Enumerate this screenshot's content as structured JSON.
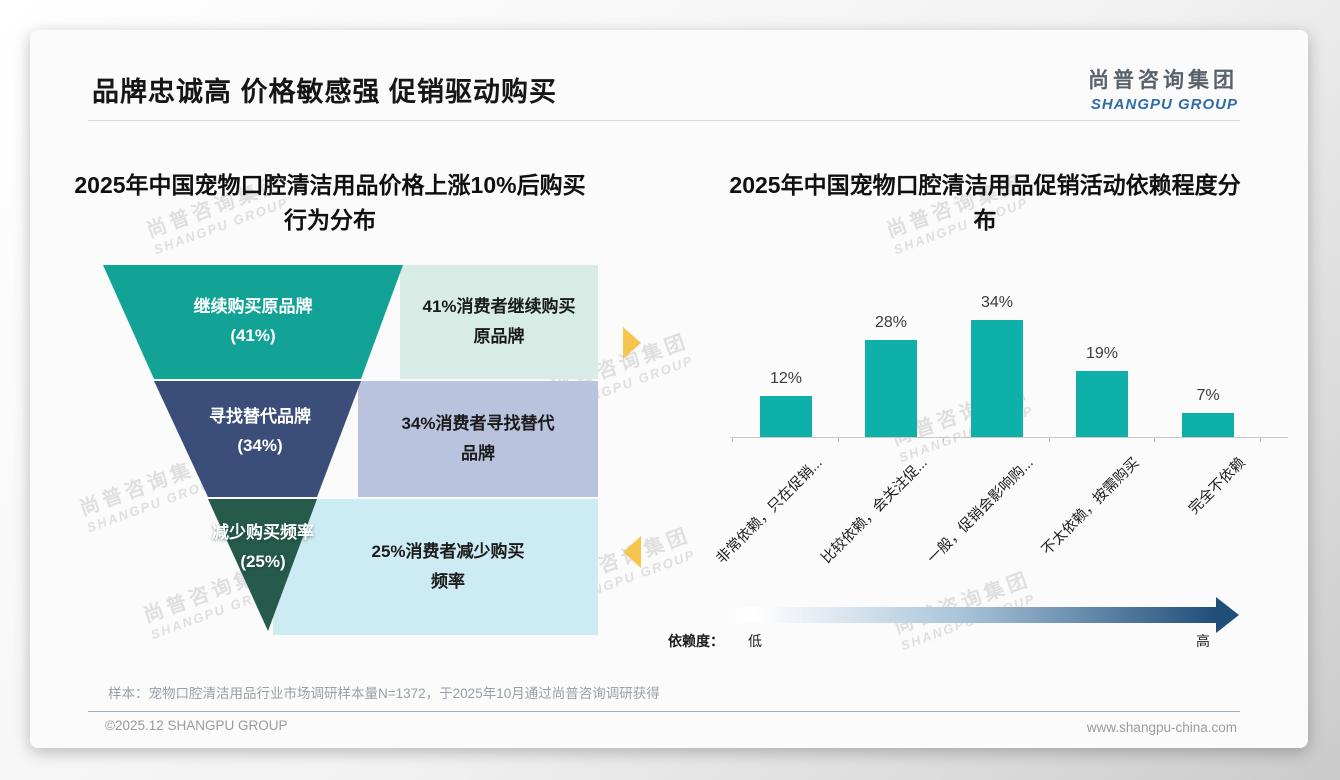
{
  "slide": {
    "title": "品牌忠诚高 价格敏感强 促销驱动购买",
    "logo": {
      "cn": "尚普咨询集团",
      "en": "SHANGPU GROUP"
    },
    "watermark": {
      "cn": "尚普咨询集团",
      "en": "SHANGPU GROUP"
    },
    "accent_arrow_color": "#f6c54f",
    "sample_note": "样本：宠物口腔清洁用品行业市场调研样本量N=1372，于2025年10月通过尚普咨询调研获得",
    "footer_left": "©2025.12 SHANGPU GROUP",
    "footer_right": "www.shangpu-china.com"
  },
  "chart_data": [
    {
      "type": "funnel",
      "title": "2025年中国宠物口腔清洁用品价格上涨10%后购买行为分布",
      "title_lines": [
        "2025年中国宠物口腔清洁用品价格上涨10%后购买",
        "行为分布"
      ],
      "levels": [
        {
          "label": "继续购买原品牌",
          "value": 41,
          "pct_label": "(41%)",
          "note": "41%消费者继续购买原品牌",
          "note_lines": [
            "41%消费者继续购买",
            "原品牌"
          ],
          "color": "#12a296",
          "note_bg": "#d6ece5"
        },
        {
          "label": "寻找替代品牌",
          "value": 34,
          "pct_label": "(34%)",
          "note": "34%消费者寻找替代品牌",
          "note_lines": [
            "34%消费者寻找替代",
            "品牌"
          ],
          "color": "#3b4e7a",
          "note_bg": "#b9c3dd"
        },
        {
          "label": "减少购买频率",
          "value": 25,
          "pct_label": "(25%)",
          "note": "25%消费者减少购买频率",
          "note_lines": [
            "25%消费者减少购买",
            "频率"
          ],
          "color": "#265a4b",
          "note_bg": "#cdebf2"
        }
      ]
    },
    {
      "type": "bar",
      "title": "2025年中国宠物口腔清洁用品促销活动依赖程度分布",
      "title_lines": [
        "2025年中国宠物口腔清洁用品促销活动依赖程度分",
        "布"
      ],
      "categories": [
        "非常依赖，只在促销...",
        "比较依赖，会关注促...",
        "一般，促销会影响购...",
        "不太依赖，按需购买",
        "完全不依赖"
      ],
      "values": [
        12,
        28,
        34,
        19,
        7
      ],
      "value_labels": [
        "12%",
        "28%",
        "34%",
        "19%",
        "7%"
      ],
      "bar_color": "#0fb0a9",
      "ylim": [
        0,
        40
      ],
      "grid": false,
      "dependency_axis": {
        "prefix": "依赖度：",
        "low": "低",
        "high": "高",
        "low_color": "#ffffff",
        "high_color": "#1f4e79"
      }
    }
  ]
}
